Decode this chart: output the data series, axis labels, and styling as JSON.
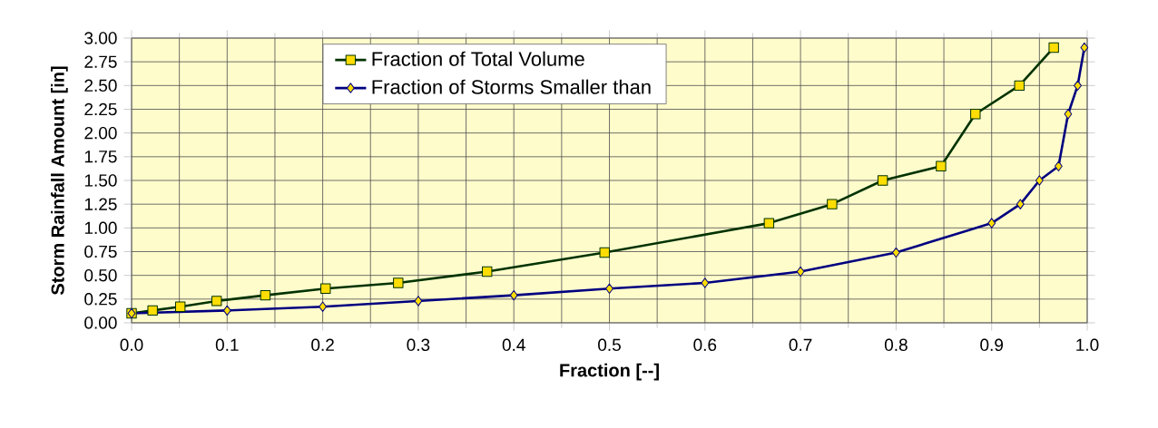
{
  "chart_data": {
    "type": "line",
    "xlabel": "Fraction [--]",
    "ylabel": "Storm Rainfall Amount [in]",
    "xlim": [
      0,
      1
    ],
    "ylim": [
      0,
      3
    ],
    "xticks": [
      {
        "value": 0,
        "label": "0.0"
      },
      {
        "value": 0.1,
        "label": "0.1"
      },
      {
        "value": 0.2,
        "label": "0.2"
      },
      {
        "value": 0.3,
        "label": "0.3"
      },
      {
        "value": 0.4,
        "label": "0.4"
      },
      {
        "value": 0.5,
        "label": "0.5"
      },
      {
        "value": 0.6,
        "label": "0.6"
      },
      {
        "value": 0.7,
        "label": "0.7"
      },
      {
        "value": 0.8,
        "label": "0.8"
      },
      {
        "value": 0.9,
        "label": "0.9"
      },
      {
        "value": 1,
        "label": "1.0"
      }
    ],
    "yticks": [
      {
        "value": 0,
        "label": "0.00"
      },
      {
        "value": 0.25,
        "label": "0.25"
      },
      {
        "value": 0.5,
        "label": "0.50"
      },
      {
        "value": 0.75,
        "label": "0.75"
      },
      {
        "value": 1,
        "label": "1.00"
      },
      {
        "value": 1.25,
        "label": "1.25"
      },
      {
        "value": 1.5,
        "label": "1.50"
      },
      {
        "value": 1.75,
        "label": "1.75"
      },
      {
        "value": 2,
        "label": "2.00"
      },
      {
        "value": 2.25,
        "label": "2.25"
      },
      {
        "value": 2.5,
        "label": "2.50"
      },
      {
        "value": 2.75,
        "label": "2.75"
      },
      {
        "value": 3,
        "label": "3.00"
      }
    ],
    "grid": true,
    "legend": "top left",
    "line_style": "solid",
    "series": [
      {
        "name": "Fraction of Total Volume",
        "color": "#003300",
        "marker": "square",
        "x": [
          0,
          0.022,
          0.051,
          0.089,
          0.14,
          0.203,
          0.279,
          0.372,
          0.495,
          0.667,
          0.733,
          0.786,
          0.847,
          0.883,
          0.929,
          0.965
        ],
        "values": [
          0.1,
          0.13,
          0.17,
          0.23,
          0.29,
          0.36,
          0.42,
          0.54,
          0.74,
          1.05,
          1.25,
          1.5,
          1.65,
          2.2,
          2.5,
          2.9
        ]
      },
      {
        "name": "Fraction of Storms Smaller than",
        "color": "#000080",
        "marker": "diamond",
        "x": [
          0,
          0.1,
          0.2,
          0.3,
          0.4,
          0.5,
          0.6,
          0.7,
          0.8,
          0.9,
          0.93,
          0.95,
          0.97,
          0.98,
          0.99,
          0.997
        ],
        "values": [
          0.1,
          0.13,
          0.17,
          0.23,
          0.29,
          0.36,
          0.42,
          0.54,
          0.74,
          1.05,
          1.25,
          1.5,
          1.65,
          2.2,
          2.5,
          2.9
        ]
      }
    ]
  }
}
